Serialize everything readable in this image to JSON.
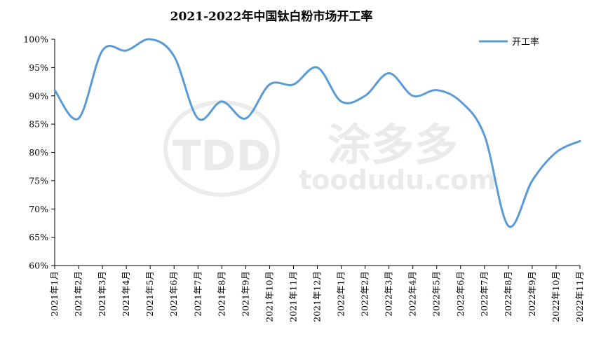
{
  "chart_data": {
    "type": "line",
    "title": "2021-2022年中国钛白粉市场开工率",
    "xlabel": "",
    "ylabel": "",
    "ylim": [
      60,
      100
    ],
    "y_ticks": [
      "60%",
      "65%",
      "70%",
      "75%",
      "80%",
      "85%",
      "90%",
      "95%",
      "100%"
    ],
    "categories": [
      "2021年1月",
      "2021年2月",
      "2021年3月",
      "2021年4月",
      "2021年5月",
      "2021年6月",
      "2021年7月",
      "2021年8月",
      "2021年9月",
      "2021年10月",
      "2021年11月",
      "2021年12月",
      "2022年1月",
      "2022年2月",
      "2022年3月",
      "2022年4月",
      "2022年5月",
      "2022年6月",
      "2022年7月",
      "2022年8月",
      "2022年9月",
      "2022年10月",
      "2022年11月"
    ],
    "series": [
      {
        "name": "开工率",
        "color": "#5b9bd5",
        "values": [
          91,
          86,
          98,
          98,
          100,
          97,
          86,
          89,
          86,
          92,
          92,
          95,
          89,
          90,
          94,
          90,
          91,
          89,
          83,
          67,
          75,
          80,
          82
        ]
      }
    ],
    "grid": false,
    "legend": "top-right",
    "watermark": {
      "logo_text": "TDD",
      "brand_text": "涂多多",
      "site_text": "toodudu.com"
    }
  }
}
